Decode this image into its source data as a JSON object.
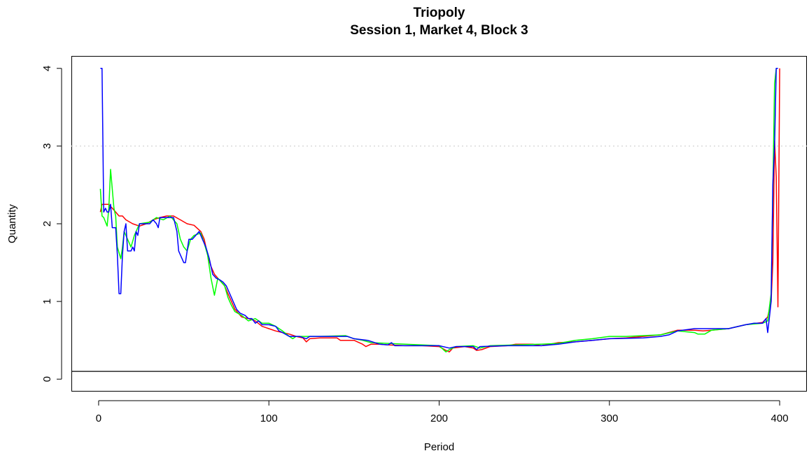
{
  "chart_data": {
    "type": "line",
    "title": "Triopoly",
    "subtitle": "Session 1, Market 4, Block 3",
    "xlabel": "Period",
    "ylabel": "Quantity",
    "xlim": [
      -16,
      416
    ],
    "ylim": [
      -0.16,
      4.16
    ],
    "xticks": [
      0,
      100,
      200,
      300,
      400
    ],
    "yticks": [
      0,
      1,
      2,
      3,
      4
    ],
    "reference_lines": [
      {
        "axis": "y",
        "value": 3,
        "style": "dotted",
        "color": "#d3d3d3"
      },
      {
        "axis": "y",
        "value": 0.1,
        "style": "solid",
        "color": "#000000"
      }
    ],
    "series": [
      {
        "color": "#ff0000",
        "points": [
          [
            1,
            2.15
          ],
          [
            2,
            2.25
          ],
          [
            6,
            2.25
          ],
          [
            8,
            2.2
          ],
          [
            10,
            2.15
          ],
          [
            12,
            2.1
          ],
          [
            14,
            2.1
          ],
          [
            16,
            2.05
          ],
          [
            20,
            2.0
          ],
          [
            24,
            1.97
          ],
          [
            28,
            2.0
          ],
          [
            32,
            2.05
          ],
          [
            36,
            2.08
          ],
          [
            40,
            2.1
          ],
          [
            44,
            2.1
          ],
          [
            48,
            2.05
          ],
          [
            52,
            2.0
          ],
          [
            56,
            1.98
          ],
          [
            60,
            1.9
          ],
          [
            62,
            1.8
          ],
          [
            64,
            1.6
          ],
          [
            66,
            1.45
          ],
          [
            68,
            1.35
          ],
          [
            70,
            1.3
          ],
          [
            72,
            1.25
          ],
          [
            74,
            1.2
          ],
          [
            76,
            1.1
          ],
          [
            78,
            1.0
          ],
          [
            80,
            0.9
          ],
          [
            82,
            0.85
          ],
          [
            84,
            0.8
          ],
          [
            88,
            0.78
          ],
          [
            92,
            0.75
          ],
          [
            96,
            0.68
          ],
          [
            100,
            0.65
          ],
          [
            104,
            0.62
          ],
          [
            108,
            0.6
          ],
          [
            112,
            0.58
          ],
          [
            116,
            0.55
          ],
          [
            120,
            0.53
          ],
          [
            122,
            0.48
          ],
          [
            124,
            0.52
          ],
          [
            130,
            0.53
          ],
          [
            140,
            0.53
          ],
          [
            142,
            0.5
          ],
          [
            150,
            0.5
          ],
          [
            155,
            0.45
          ],
          [
            157,
            0.42
          ],
          [
            160,
            0.45
          ],
          [
            165,
            0.45
          ],
          [
            170,
            0.44
          ],
          [
            180,
            0.43
          ],
          [
            190,
            0.43
          ],
          [
            200,
            0.42
          ],
          [
            204,
            0.37
          ],
          [
            206,
            0.35
          ],
          [
            208,
            0.4
          ],
          [
            215,
            0.42
          ],
          [
            220,
            0.4
          ],
          [
            222,
            0.37
          ],
          [
            225,
            0.38
          ],
          [
            230,
            0.42
          ],
          [
            240,
            0.43
          ],
          [
            245,
            0.45
          ],
          [
            255,
            0.45
          ],
          [
            260,
            0.43
          ],
          [
            265,
            0.45
          ],
          [
            270,
            0.47
          ],
          [
            280,
            0.48
          ],
          [
            290,
            0.5
          ],
          [
            300,
            0.52
          ],
          [
            310,
            0.53
          ],
          [
            320,
            0.55
          ],
          [
            330,
            0.57
          ],
          [
            340,
            0.63
          ],
          [
            350,
            0.63
          ],
          [
            355,
            0.62
          ],
          [
            360,
            0.63
          ],
          [
            370,
            0.65
          ],
          [
            380,
            0.7
          ],
          [
            390,
            0.73
          ],
          [
            393,
            0.8
          ],
          [
            395,
            1.0
          ],
          [
            396,
            1.5
          ],
          [
            397,
            3.07
          ],
          [
            398,
            2.6
          ],
          [
            399,
            0.93
          ],
          [
            400,
            4.0
          ]
        ]
      },
      {
        "color": "#00ff00",
        "points": [
          [
            1,
            2.45
          ],
          [
            2,
            2.1
          ],
          [
            3,
            2.08
          ],
          [
            5,
            1.97
          ],
          [
            6,
            2.2
          ],
          [
            7,
            2.7
          ],
          [
            8,
            2.45
          ],
          [
            9,
            2.2
          ],
          [
            10,
            2.1
          ],
          [
            11,
            1.7
          ],
          [
            13,
            1.55
          ],
          [
            14,
            1.7
          ],
          [
            15,
            1.9
          ],
          [
            17,
            1.8
          ],
          [
            19,
            1.7
          ],
          [
            21,
            1.85
          ],
          [
            24,
            2.0
          ],
          [
            30,
            2.02
          ],
          [
            34,
            2.08
          ],
          [
            38,
            2.05
          ],
          [
            42,
            2.1
          ],
          [
            46,
            2.0
          ],
          [
            48,
            1.8
          ],
          [
            50,
            1.7
          ],
          [
            52,
            1.65
          ],
          [
            54,
            1.8
          ],
          [
            56,
            1.85
          ],
          [
            60,
            1.88
          ],
          [
            62,
            1.75
          ],
          [
            64,
            1.6
          ],
          [
            66,
            1.3
          ],
          [
            68,
            1.08
          ],
          [
            70,
            1.3
          ],
          [
            72,
            1.25
          ],
          [
            74,
            1.2
          ],
          [
            76,
            1.05
          ],
          [
            78,
            0.95
          ],
          [
            80,
            0.87
          ],
          [
            84,
            0.82
          ],
          [
            88,
            0.75
          ],
          [
            92,
            0.78
          ],
          [
            96,
            0.72
          ],
          [
            100,
            0.72
          ],
          [
            104,
            0.68
          ],
          [
            108,
            0.62
          ],
          [
            112,
            0.55
          ],
          [
            114,
            0.52
          ],
          [
            116,
            0.55
          ],
          [
            124,
            0.55
          ],
          [
            130,
            0.55
          ],
          [
            145,
            0.56
          ],
          [
            150,
            0.52
          ],
          [
            155,
            0.5
          ],
          [
            160,
            0.47
          ],
          [
            170,
            0.46
          ],
          [
            180,
            0.45
          ],
          [
            190,
            0.44
          ],
          [
            200,
            0.43
          ],
          [
            204,
            0.35
          ],
          [
            206,
            0.38
          ],
          [
            210,
            0.42
          ],
          [
            220,
            0.43
          ],
          [
            224,
            0.4
          ],
          [
            230,
            0.43
          ],
          [
            245,
            0.44
          ],
          [
            260,
            0.45
          ],
          [
            270,
            0.46
          ],
          [
            280,
            0.5
          ],
          [
            290,
            0.52
          ],
          [
            300,
            0.55
          ],
          [
            310,
            0.55
          ],
          [
            320,
            0.56
          ],
          [
            330,
            0.57
          ],
          [
            340,
            0.62
          ],
          [
            350,
            0.6
          ],
          [
            352,
            0.58
          ],
          [
            356,
            0.58
          ],
          [
            360,
            0.63
          ],
          [
            370,
            0.65
          ],
          [
            380,
            0.7
          ],
          [
            390,
            0.72
          ],
          [
            393,
            0.75
          ],
          [
            395,
            1.1
          ],
          [
            396,
            2.4
          ],
          [
            397,
            3.8
          ],
          [
            398,
            4.0
          ],
          [
            399,
            4.0
          ]
        ]
      },
      {
        "color": "#0000ff",
        "points": [
          [
            1,
            4.0
          ],
          [
            2,
            4.0
          ],
          [
            3,
            2.15
          ],
          [
            4,
            2.2
          ],
          [
            5,
            2.15
          ],
          [
            6,
            2.15
          ],
          [
            7,
            2.25
          ],
          [
            8,
            1.95
          ],
          [
            10,
            1.95
          ],
          [
            11,
            1.6
          ],
          [
            12,
            1.1
          ],
          [
            13,
            1.1
          ],
          [
            14,
            1.6
          ],
          [
            15,
            1.9
          ],
          [
            16,
            2.0
          ],
          [
            17,
            1.65
          ],
          [
            19,
            1.65
          ],
          [
            20,
            1.7
          ],
          [
            21,
            1.65
          ],
          [
            22,
            1.9
          ],
          [
            23,
            1.85
          ],
          [
            24,
            2.0
          ],
          [
            30,
            2.0
          ],
          [
            32,
            2.05
          ],
          [
            34,
            2.0
          ],
          [
            35,
            1.95
          ],
          [
            36,
            2.08
          ],
          [
            44,
            2.08
          ],
          [
            46,
            1.9
          ],
          [
            47,
            1.65
          ],
          [
            48,
            1.6
          ],
          [
            50,
            1.5
          ],
          [
            51,
            1.5
          ],
          [
            52,
            1.65
          ],
          [
            53,
            1.8
          ],
          [
            55,
            1.8
          ],
          [
            57,
            1.85
          ],
          [
            59,
            1.9
          ],
          [
            61,
            1.8
          ],
          [
            63,
            1.7
          ],
          [
            65,
            1.55
          ],
          [
            67,
            1.35
          ],
          [
            69,
            1.3
          ],
          [
            71,
            1.28
          ],
          [
            73,
            1.25
          ],
          [
            75,
            1.2
          ],
          [
            77,
            1.1
          ],
          [
            79,
            1.0
          ],
          [
            81,
            0.9
          ],
          [
            83,
            0.85
          ],
          [
            86,
            0.82
          ],
          [
            88,
            0.78
          ],
          [
            90,
            0.78
          ],
          [
            92,
            0.72
          ],
          [
            94,
            0.75
          ],
          [
            96,
            0.7
          ],
          [
            100,
            0.7
          ],
          [
            104,
            0.68
          ],
          [
            106,
            0.62
          ],
          [
            108,
            0.6
          ],
          [
            112,
            0.55
          ],
          [
            118,
            0.55
          ],
          [
            122,
            0.52
          ],
          [
            124,
            0.55
          ],
          [
            140,
            0.55
          ],
          [
            146,
            0.55
          ],
          [
            150,
            0.52
          ],
          [
            158,
            0.5
          ],
          [
            165,
            0.45
          ],
          [
            170,
            0.44
          ],
          [
            172,
            0.47
          ],
          [
            174,
            0.43
          ],
          [
            185,
            0.43
          ],
          [
            190,
            0.43
          ],
          [
            200,
            0.43
          ],
          [
            206,
            0.4
          ],
          [
            210,
            0.42
          ],
          [
            220,
            0.42
          ],
          [
            222,
            0.38
          ],
          [
            224,
            0.42
          ],
          [
            240,
            0.43
          ],
          [
            260,
            0.43
          ],
          [
            270,
            0.45
          ],
          [
            280,
            0.48
          ],
          [
            290,
            0.5
          ],
          [
            300,
            0.52
          ],
          [
            320,
            0.53
          ],
          [
            330,
            0.55
          ],
          [
            335,
            0.57
          ],
          [
            340,
            0.62
          ],
          [
            350,
            0.65
          ],
          [
            360,
            0.65
          ],
          [
            370,
            0.65
          ],
          [
            380,
            0.7
          ],
          [
            385,
            0.72
          ],
          [
            390,
            0.72
          ],
          [
            392,
            0.78
          ],
          [
            393,
            0.6
          ],
          [
            394,
            0.8
          ],
          [
            395,
            1.0
          ],
          [
            396,
            2.5
          ],
          [
            397,
            3.0
          ],
          [
            398,
            4.0
          ],
          [
            399,
            4.0
          ]
        ]
      }
    ]
  }
}
